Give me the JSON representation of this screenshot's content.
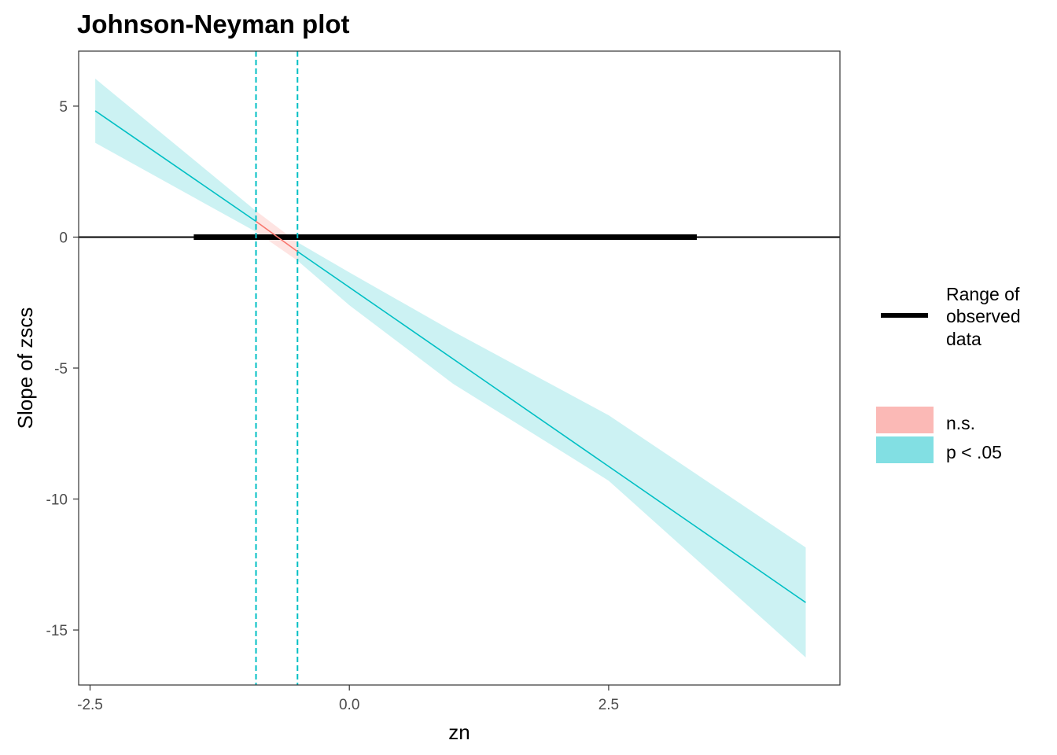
{
  "chart_data": {
    "type": "line",
    "title": "Johnson-Neyman plot",
    "xlabel": "zn",
    "ylabel": "Slope of zscs",
    "xlim": [
      -2.61,
      4.73
    ],
    "ylim": [
      -17.1,
      7.1
    ],
    "x_ticks": [
      -2.5,
      0.0,
      2.5
    ],
    "x_tick_labels": [
      "-2.5",
      "0.0",
      "2.5"
    ],
    "y_ticks": [
      5,
      0,
      -5,
      -10,
      -15
    ],
    "y_tick_labels": [
      "5",
      "0",
      "-5",
      "-10",
      "-15"
    ],
    "grid": false,
    "series": [
      {
        "type": "slope-line",
        "x": [
          -2.45,
          -0.9,
          -0.5,
          4.4
        ],
        "y": [
          4.82,
          0.6,
          -0.55,
          -13.95
        ],
        "segments": [
          {
            "x": [
              -2.45,
              -0.9
            ],
            "significance": "p < .05"
          },
          {
            "x": [
              -0.9,
              -0.5
            ],
            "significance": "n.s."
          },
          {
            "x": [
              -0.5,
              4.4
            ],
            "significance": "p < .05"
          }
        ]
      },
      {
        "type": "confidence-band",
        "x": [
          -2.45,
          -0.9,
          -0.5,
          0.0,
          1.0,
          2.5,
          4.4
        ],
        "upper": [
          6.05,
          1.0,
          -0.2,
          -1.35,
          -3.6,
          -6.8,
          -11.85
        ],
        "lower": [
          3.6,
          0.2,
          -0.9,
          -2.6,
          -5.6,
          -9.3,
          -16.05
        ]
      }
    ],
    "range_of_observed_data": [
      -1.5,
      3.35
    ],
    "reference_line_y": 0,
    "jn_boundaries": [
      -0.9,
      -0.5
    ],
    "legend": {
      "placement": "right",
      "range_label": "Range of observed data",
      "range_label_lines": [
        "Range of",
        "observed",
        "data"
      ],
      "fill_entries": [
        {
          "label": "n.s.",
          "color": "#fbb9b6"
        },
        {
          "label": "p < .05",
          "color": "#82dfe3"
        }
      ]
    },
    "colors": {
      "sig_line": "#00bfc4",
      "ns_line": "#f8766d",
      "sig_band": "#00bfc4",
      "ns_band": "#f8766d",
      "band_opacity": 0.2,
      "boundary_line": "#00bfc4",
      "zero_line": "#000000",
      "range_bar": "#000000"
    }
  }
}
